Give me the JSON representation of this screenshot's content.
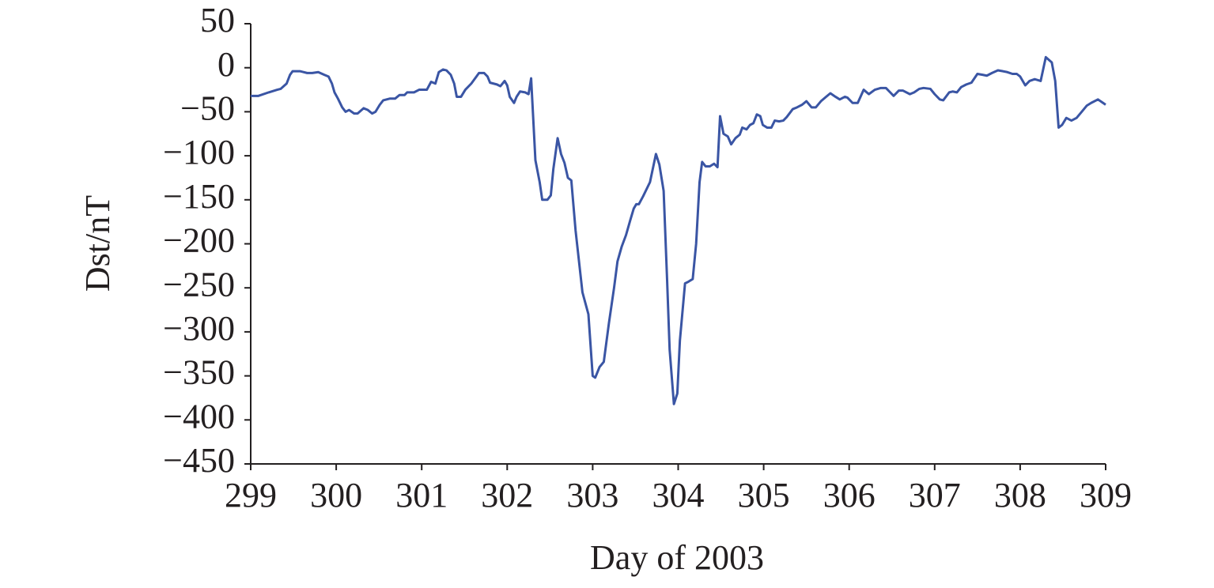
{
  "chart_data": {
    "type": "line",
    "x_label": "Day of 2003",
    "y_label": "Dst/nT",
    "color": "#3a55a4",
    "xlim": [
      299,
      309
    ],
    "ylim": [
      -450,
      50
    ],
    "xticks": [
      299,
      300,
      301,
      302,
      303,
      304,
      305,
      306,
      307,
      308,
      309
    ],
    "yticks": [
      {
        "value": 50,
        "label": "50"
      },
      {
        "value": 0,
        "label": "0"
      },
      {
        "value": -50,
        "label": "−50"
      },
      {
        "value": -100,
        "label": "−100"
      },
      {
        "value": -150,
        "label": "−150"
      },
      {
        "value": -200,
        "label": "−200"
      },
      {
        "value": -250,
        "label": "−250"
      },
      {
        "value": -300,
        "label": "−300"
      },
      {
        "value": -350,
        "label": "−350"
      },
      {
        "value": -400,
        "label": "−400"
      },
      {
        "value": -450,
        "label": "−450"
      }
    ],
    "x": [
      299.0,
      299.09,
      299.21,
      299.31,
      299.35,
      299.42,
      299.46,
      299.49,
      299.58,
      299.66,
      299.72,
      299.79,
      299.86,
      299.91,
      299.95,
      299.98,
      300.02,
      300.07,
      300.11,
      300.15,
      300.21,
      300.25,
      300.32,
      300.37,
      300.42,
      300.46,
      300.51,
      300.55,
      300.63,
      300.69,
      300.74,
      300.8,
      300.83,
      300.91,
      300.97,
      301.06,
      301.11,
      301.16,
      301.2,
      301.25,
      301.29,
      301.34,
      301.38,
      301.41,
      301.46,
      301.51,
      301.58,
      301.64,
      301.67,
      301.73,
      301.77,
      301.8,
      301.88,
      301.92,
      301.97,
      302.0,
      302.03,
      302.08,
      302.11,
      302.15,
      302.21,
      302.25,
      302.28,
      302.33,
      302.38,
      302.41,
      302.47,
      302.51,
      302.54,
      302.59,
      302.63,
      302.67,
      302.71,
      302.75,
      302.8,
      302.88,
      302.95,
      303.0,
      303.03,
      303.08,
      303.13,
      303.19,
      303.25,
      303.29,
      303.34,
      303.39,
      303.44,
      303.48,
      303.51,
      303.54,
      303.59,
      303.67,
      303.74,
      303.78,
      303.83,
      303.87,
      303.9,
      303.95,
      303.99,
      304.02,
      304.08,
      304.12,
      304.17,
      304.21,
      304.25,
      304.28,
      304.32,
      304.37,
      304.42,
      304.46,
      304.49,
      304.53,
      304.58,
      304.62,
      304.67,
      304.72,
      304.75,
      304.8,
      304.84,
      304.88,
      304.92,
      304.96,
      304.99,
      305.04,
      305.09,
      305.13,
      305.18,
      305.23,
      305.27,
      305.34,
      305.39,
      305.45,
      305.5,
      305.56,
      305.61,
      305.67,
      305.73,
      305.78,
      305.84,
      305.89,
      305.95,
      305.98,
      306.04,
      306.1,
      306.17,
      306.23,
      306.3,
      306.37,
      306.43,
      306.48,
      306.52,
      306.58,
      306.63,
      306.71,
      306.76,
      306.82,
      306.87,
      306.95,
      307.0,
      307.06,
      307.1,
      307.17,
      307.21,
      307.26,
      307.31,
      307.37,
      307.43,
      307.5,
      307.56,
      307.61,
      307.67,
      307.74,
      307.8,
      307.85,
      307.91,
      307.96,
      308.0,
      308.06,
      308.11,
      308.17,
      308.24,
      308.3,
      308.37,
      308.41,
      308.45,
      308.49,
      308.54,
      308.6,
      308.66,
      308.72,
      308.78,
      308.83,
      308.91,
      309.0
    ],
    "values": [
      -32,
      -32,
      -28,
      -25,
      -24,
      -18,
      -8,
      -4,
      -4,
      -6,
      -6,
      -5,
      -8,
      -10,
      -18,
      -28,
      -35,
      -45,
      -50,
      -48,
      -52,
      -52,
      -46,
      -48,
      -52,
      -50,
      -42,
      -37,
      -35,
      -35,
      -31,
      -31,
      -28,
      -28,
      -25,
      -25,
      -16,
      -18,
      -5,
      -2,
      -3,
      -8,
      -18,
      -33,
      -33,
      -25,
      -18,
      -10,
      -6,
      -6,
      -10,
      -17,
      -19,
      -21,
      -15,
      -20,
      -33,
      -40,
      -33,
      -27,
      -28,
      -30,
      -12,
      -105,
      -130,
      -150,
      -150,
      -145,
      -115,
      -80,
      -98,
      -108,
      -125,
      -128,
      -185,
      -255,
      -280,
      -350,
      -352,
      -340,
      -334,
      -290,
      -250,
      -220,
      -203,
      -190,
      -173,
      -160,
      -155,
      -155,
      -146,
      -130,
      -98,
      -110,
      -140,
      -240,
      -320,
      -382,
      -370,
      -310,
      -245,
      -243,
      -240,
      -200,
      -130,
      -107,
      -112,
      -112,
      -109,
      -113,
      -55,
      -75,
      -78,
      -87,
      -80,
      -76,
      -68,
      -70,
      -65,
      -63,
      -53,
      -55,
      -65,
      -68,
      -68,
      -60,
      -61,
      -60,
      -56,
      -47,
      -45,
      -42,
      -38,
      -45,
      -45,
      -38,
      -33,
      -29,
      -33,
      -36,
      -33,
      -34,
      -40,
      -40,
      -25,
      -30,
      -25,
      -23,
      -23,
      -28,
      -32,
      -26,
      -26,
      -30,
      -28,
      -24,
      -23,
      -24,
      -30,
      -36,
      -37,
      -28,
      -27,
      -28,
      -22,
      -19,
      -17,
      -7,
      -8,
      -9,
      -6,
      -3,
      -4,
      -5,
      -7,
      -7,
      -10,
      -20,
      -15,
      -13,
      -15,
      12,
      6,
      -15,
      -68,
      -65,
      -57,
      -60,
      -57,
      -50,
      -43,
      -40,
      -36,
      -42
    ]
  }
}
